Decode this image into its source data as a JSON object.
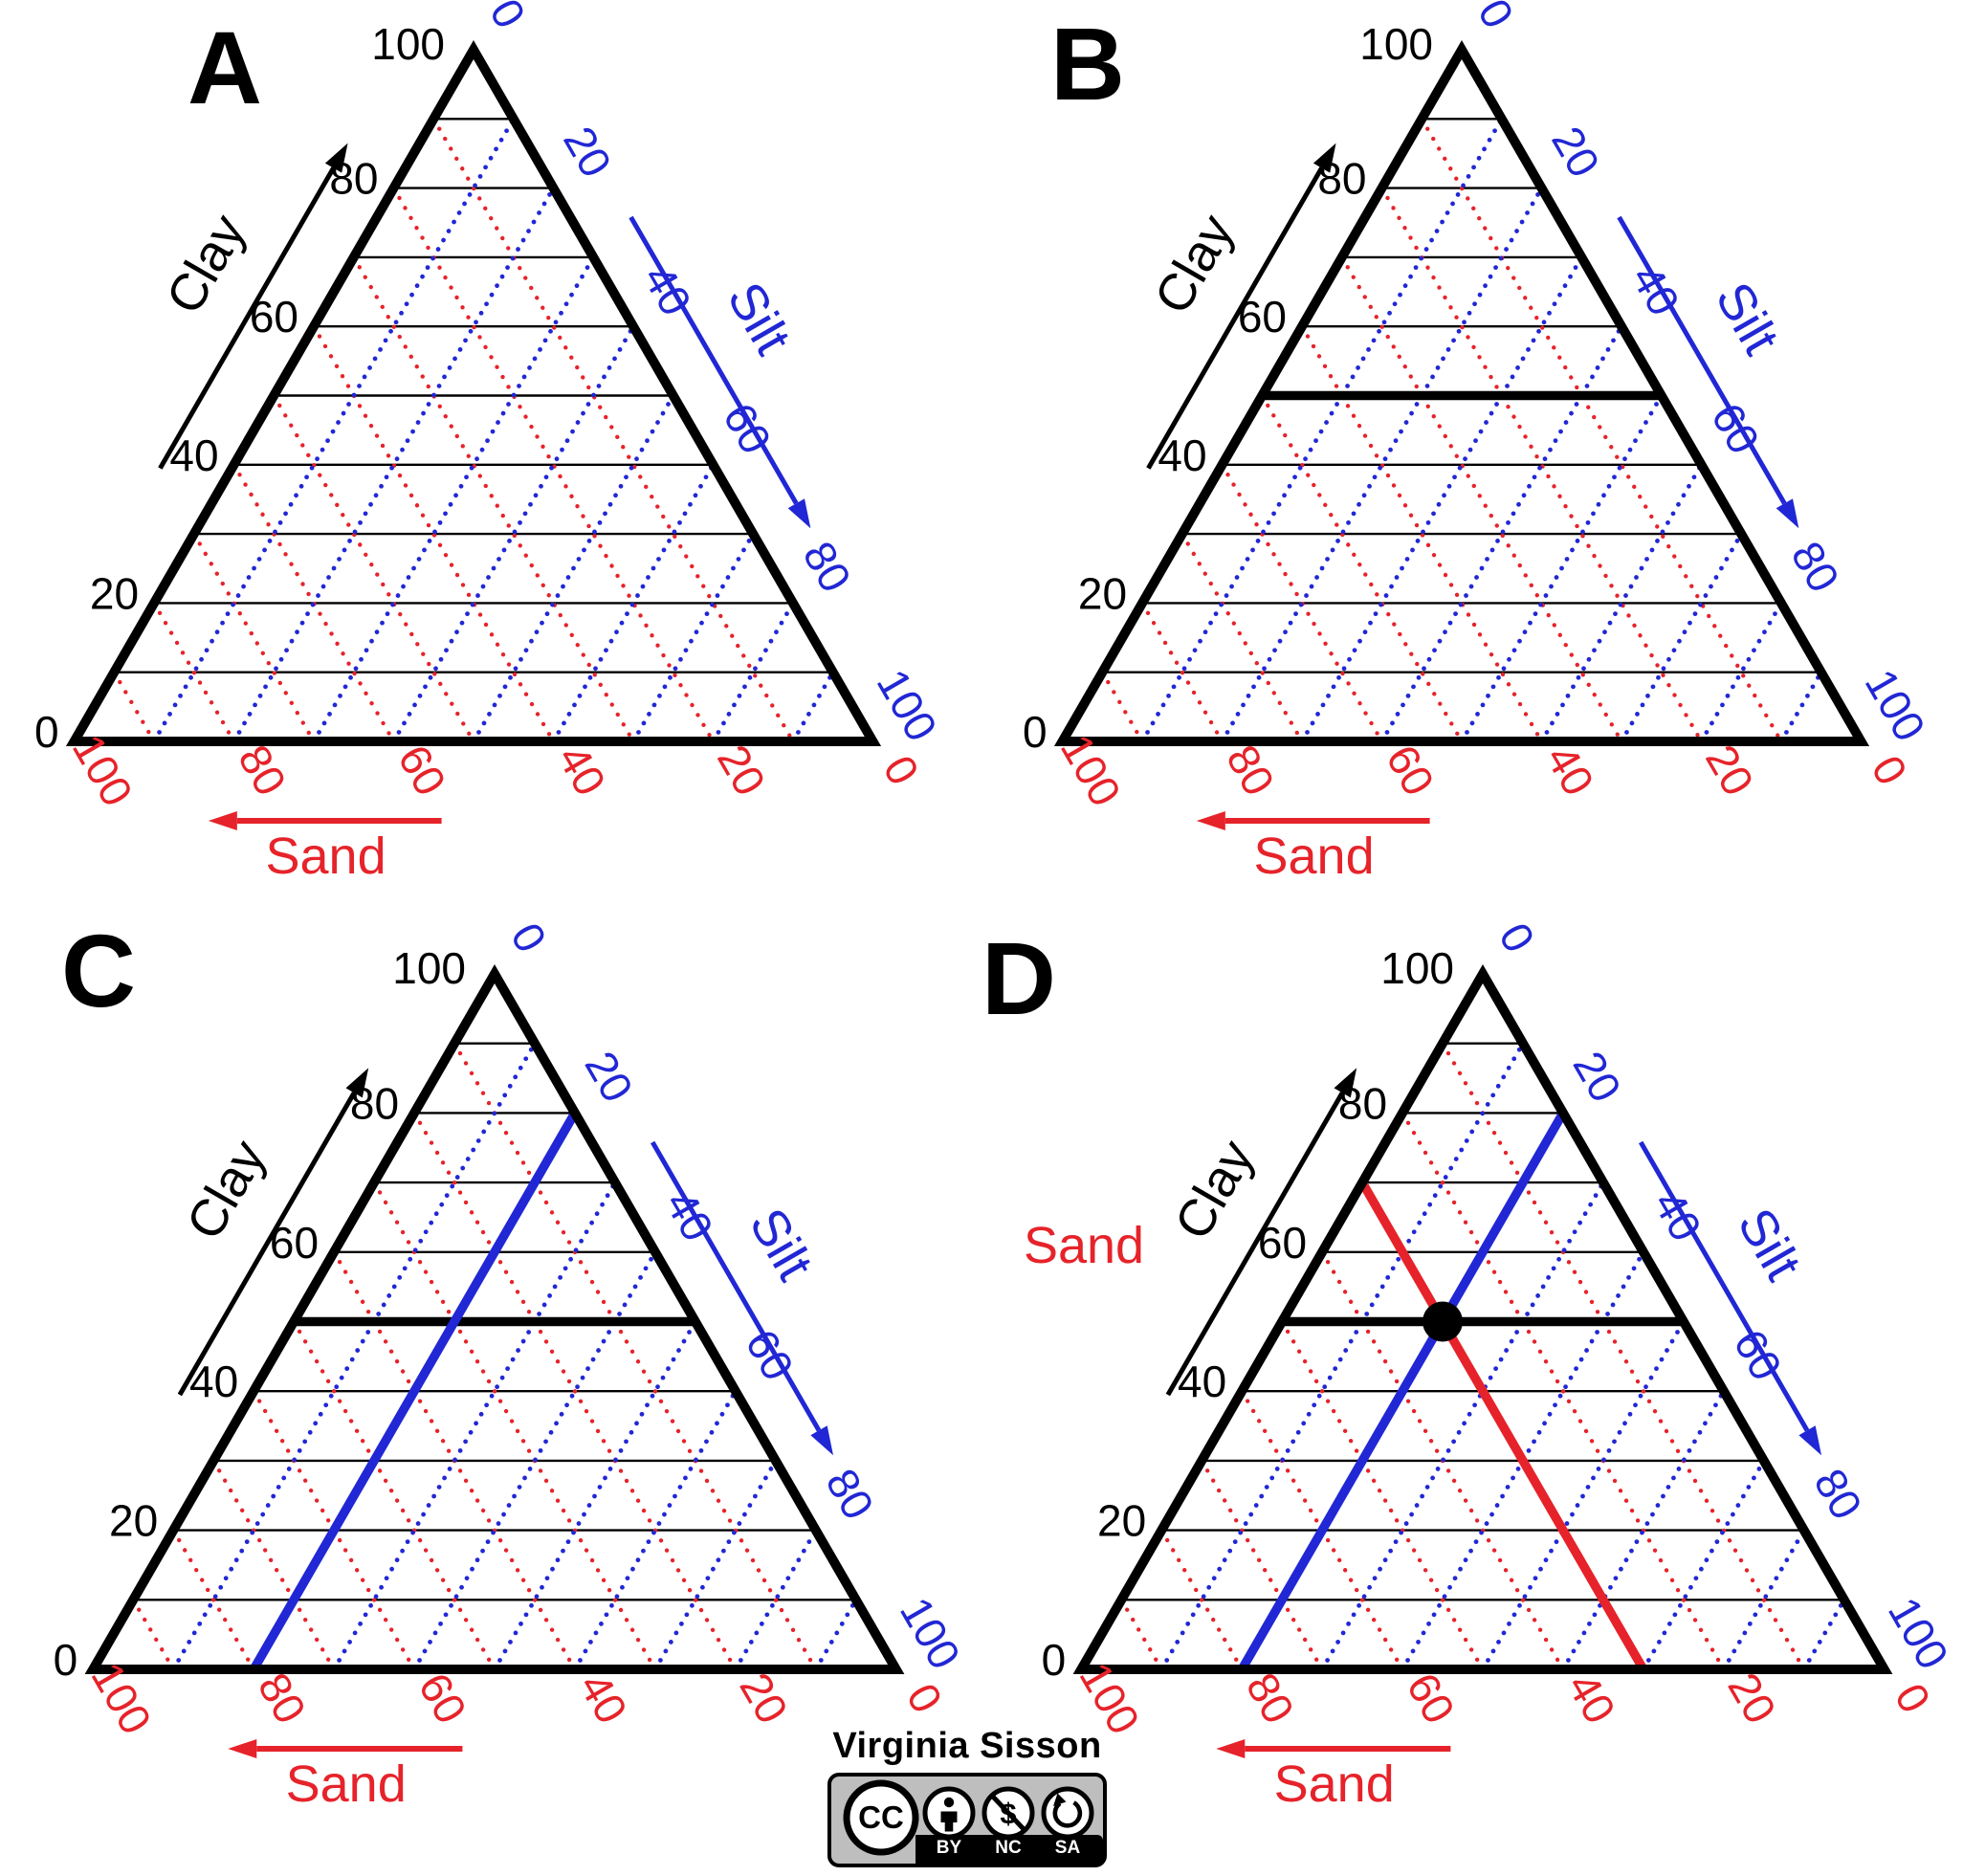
{
  "figure": {
    "credit": "Virginia Sisson",
    "license": {
      "cc": "CC",
      "items": [
        "BY",
        "NC",
        "SA"
      ],
      "nc_symbol": "$",
      "icon_names": [
        "cc-circle-icon",
        "attribution-person-icon",
        "non-commercial-dollar-icon",
        "share-alike-arrow-icon"
      ]
    }
  },
  "colors": {
    "clay": "#000000",
    "sand": "#e6232a",
    "silt": "#2127d4",
    "point": "#000000",
    "badge_bg": "#bebebe",
    "background": "#ffffff"
  },
  "chart_data": {
    "type": "ternary",
    "title": "",
    "description": "Four ternary Clay-Silt-Sand composition diagrams labeled A to D showing how to read a ternary plot",
    "grid": {
      "step": 10,
      "on": true
    },
    "axes": {
      "clay": {
        "label": "Clay",
        "min": 0,
        "max": 100,
        "tick_labels": [
          0,
          20,
          40,
          60,
          80,
          100
        ],
        "side": "left",
        "line_style": "solid",
        "color": "#000000"
      },
      "sand": {
        "label": "Sand",
        "min": 0,
        "max": 100,
        "tick_labels": [
          100,
          80,
          60,
          40,
          20,
          0
        ],
        "side": "bottom",
        "line_style": "dotted",
        "color": "#e6232a"
      },
      "silt": {
        "label": "Silt",
        "min": 0,
        "max": 100,
        "tick_labels": [
          0,
          20,
          40,
          60,
          80,
          100
        ],
        "side": "right",
        "line_style": "dotted",
        "color": "#2127d4"
      }
    },
    "panels": [
      {
        "id": "A",
        "highlight_lines": [],
        "point": null
      },
      {
        "id": "B",
        "highlight_lines": [
          {
            "axis": "clay",
            "value": 50
          }
        ],
        "point": null
      },
      {
        "id": "C",
        "highlight_lines": [
          {
            "axis": "clay",
            "value": 50
          },
          {
            "axis": "silt",
            "value": 20
          }
        ],
        "point": null
      },
      {
        "id": "D",
        "highlight_lines": [
          {
            "axis": "clay",
            "value": 50
          },
          {
            "axis": "silt",
            "value": 20
          },
          {
            "axis": "sand",
            "value": 30
          }
        ],
        "point": {
          "clay": 50,
          "silt": 20,
          "sand": 30
        },
        "line_label": "Sand"
      }
    ]
  }
}
